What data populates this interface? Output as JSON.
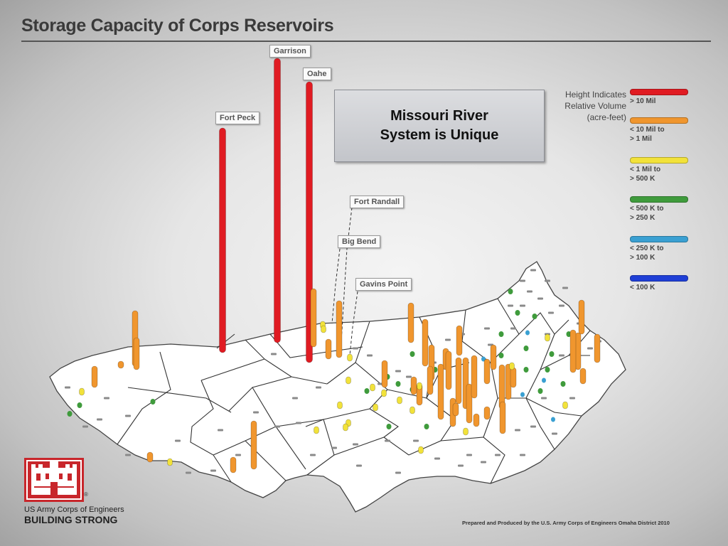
{
  "title": "Storage Capacity of Corps Reservoirs",
  "callout_box": {
    "lines": [
      "Missouri River",
      "System is Unique"
    ]
  },
  "legend": {
    "title_lines": [
      "Height Indicates",
      "Relative Volume",
      "(acre-feet)"
    ],
    "items": [
      {
        "label_lines": [
          "> 10 Mil"
        ],
        "color": "#e01b22"
      },
      {
        "label_lines": [
          "< 10 Mil to",
          "> 1 Mil"
        ],
        "color": "#f0962e"
      },
      {
        "label_lines": [
          "< 1 Mil to",
          "> 500 K"
        ],
        "color": "#f2e23a"
      },
      {
        "label_lines": [
          "< 500 K to",
          "> 250 K"
        ],
        "color": "#3f9b3c"
      },
      {
        "label_lines": [
          "< 250 K to",
          "> 100 K"
        ],
        "color": "#3aa0d2"
      },
      {
        "label_lines": [
          "< 100 K"
        ],
        "color": "#1f3fd6"
      }
    ]
  },
  "reservoir_labels": [
    "Fort Peck",
    "Garrison",
    "Oahe",
    "Fort Randall",
    "Big Bend",
    "Gavins Point"
  ],
  "footer": {
    "org": "US Army Corps of Engineers",
    "motto": "BUILDING STRONG",
    "registered": "®",
    "credit": "Prepared and Produced by the U.S. Army Corps of Engineers Omaha District 2010"
  },
  "colors": {
    "gray_small": "#8a8a8a",
    "map_fill": "#ffffff",
    "logo_red": "#c8262b"
  }
}
